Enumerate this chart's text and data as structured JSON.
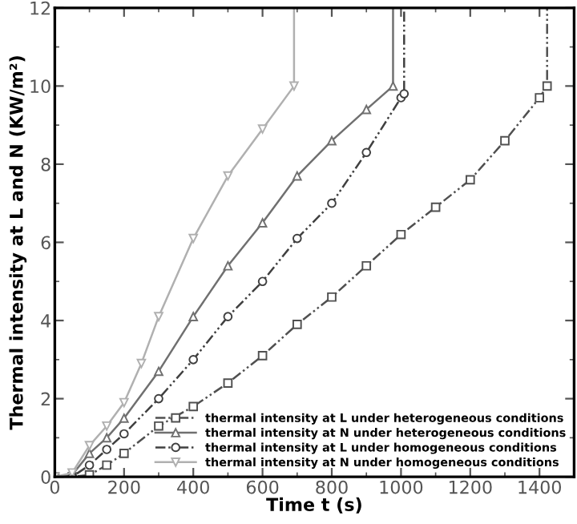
{
  "chart_data": {
    "type": "line",
    "xlabel": "Time t (s)",
    "ylabel": "Thermal intensity at L and N (KW/m²)",
    "xlim": [
      0,
      1500
    ],
    "ylim": [
      0,
      12
    ],
    "xticks": [
      0,
      200,
      400,
      600,
      800,
      1000,
      1200,
      1400
    ],
    "yticks": [
      0,
      2,
      4,
      6,
      8,
      10,
      12
    ],
    "legend": "bottom right",
    "grid": false,
    "series": [
      {
        "name": "thermal intensity at L under heterogeneous conditions",
        "color": "#505050",
        "marker": "square",
        "line_style": "dashed",
        "x": [
          0,
          50,
          100,
          150,
          200,
          300,
          400,
          500,
          600,
          700,
          800,
          900,
          1000,
          1100,
          1200,
          1300,
          1400,
          1422,
          1422
        ],
        "values": [
          0,
          0,
          0.05,
          0.3,
          0.6,
          1.3,
          1.8,
          2.4,
          3.1,
          3.9,
          4.6,
          5.4,
          6.2,
          6.9,
          7.6,
          8.6,
          9.7,
          10,
          12
        ]
      },
      {
        "name": "thermal intensity at N under heterogeneous conditions",
        "color": "#707070",
        "marker": "triangle",
        "line_style": "solid",
        "x": [
          0,
          50,
          100,
          150,
          200,
          300,
          400,
          500,
          600,
          700,
          800,
          900,
          977,
          977
        ],
        "values": [
          0,
          0.05,
          0.6,
          1.0,
          1.5,
          2.7,
          4.1,
          5.4,
          6.5,
          7.7,
          8.6,
          9.4,
          10,
          12
        ]
      },
      {
        "name": "thermal intensity at L under homogeneous conditions",
        "color": "#404040",
        "marker": "circle",
        "line_style": "dashed",
        "x": [
          0,
          50,
          100,
          150,
          200,
          300,
          400,
          500,
          600,
          700,
          800,
          900,
          1000,
          1009,
          1009
        ],
        "values": [
          0,
          0,
          0.3,
          0.7,
          1.1,
          2.0,
          3.0,
          4.1,
          5.0,
          6.1,
          7.0,
          8.3,
          9.7,
          9.8,
          12
        ]
      },
      {
        "name": "thermal intensity at N under homogeneous conditions",
        "color": "#b0b0b0",
        "marker": "triangle_down",
        "line_style": "solid",
        "x": [
          0,
          50,
          100,
          150,
          200,
          250,
          300,
          400,
          500,
          600,
          691,
          691
        ],
        "values": [
          0,
          0.1,
          0.8,
          1.3,
          1.9,
          2.9,
          4.1,
          6.1,
          7.7,
          8.9,
          10,
          12
        ]
      }
    ]
  }
}
